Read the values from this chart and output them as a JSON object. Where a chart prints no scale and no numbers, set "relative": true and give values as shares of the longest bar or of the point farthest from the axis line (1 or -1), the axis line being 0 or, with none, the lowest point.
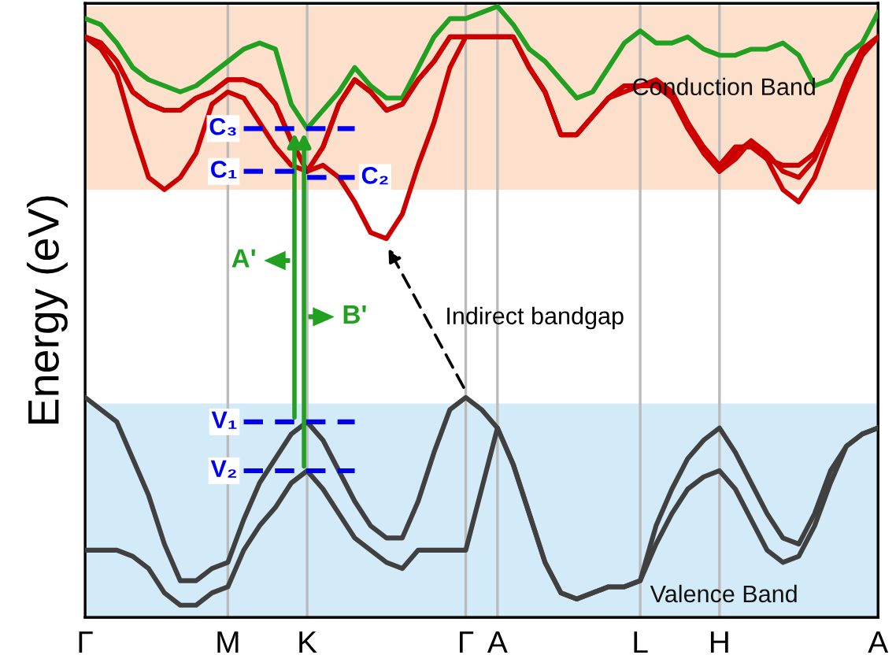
{
  "chart_data": {
    "type": "line",
    "relative": true,
    "ylabel": "Energy (eV)",
    "categories": [
      "Γ",
      null,
      null,
      null,
      null,
      null,
      null,
      null,
      null,
      "M",
      null,
      null,
      null,
      null,
      "K",
      null,
      null,
      null,
      null,
      null,
      null,
      null,
      null,
      null,
      "Γ",
      null,
      "A",
      null,
      null,
      null,
      null,
      null,
      null,
      null,
      null,
      "L",
      null,
      null,
      null,
      null,
      "H",
      null,
      null,
      null,
      null,
      null,
      null,
      null,
      null,
      null,
      "A"
    ],
    "series": [
      {
        "color": "#22a022",
        "values": [
          0.98,
          0.97,
          0.94,
          0.9,
          0.88,
          0.87,
          0.86,
          0.87,
          0.89,
          0.91,
          0.93,
          0.94,
          0.93,
          0.84,
          0.8,
          0.83,
          0.86,
          0.9,
          0.87,
          0.85,
          0.85,
          0.9,
          0.95,
          0.98,
          0.98,
          0.99,
          1.0,
          0.97,
          0.93,
          0.91,
          0.88,
          0.85,
          0.86,
          0.9,
          0.94,
          0.96,
          0.94,
          0.94,
          0.95,
          0.93,
          0.92,
          0.92,
          0.93,
          0.93,
          0.94,
          0.92,
          0.87,
          0.88,
          0.92,
          0.94,
          0.99
        ]
      },
      {
        "color": "#cc0000",
        "values": [
          0.95,
          0.93,
          0.89,
          0.8,
          0.72,
          0.7,
          0.72,
          0.76,
          0.84,
          0.86,
          0.85,
          0.81,
          0.77,
          0.74,
          0.73,
          0.74,
          0.72,
          0.68,
          0.63,
          0.62,
          0.66,
          0.74,
          0.81,
          0.9,
          0.95,
          0.95,
          0.95,
          0.95,
          0.9,
          0.86,
          0.79,
          0.79,
          0.82,
          0.85,
          0.86,
          0.87,
          0.87,
          0.86,
          0.81,
          0.76,
          0.73,
          0.75,
          0.78,
          0.75,
          0.7,
          0.68,
          0.72,
          0.79,
          0.86,
          0.92,
          0.95
        ]
      },
      {
        "color": "#cc0000",
        "values": [
          0.95,
          0.94,
          0.91,
          0.86,
          0.84,
          0.83,
          0.83,
          0.85,
          0.86,
          0.88,
          0.88,
          0.87,
          0.84,
          0.78,
          0.73,
          0.77,
          0.84,
          0.88,
          0.86,
          0.83,
          0.84,
          0.88,
          0.91,
          0.95,
          0.95,
          0.95,
          0.95,
          0.95,
          0.9,
          0.86,
          0.79,
          0.79,
          0.82,
          0.85,
          0.87,
          0.87,
          0.87,
          0.85,
          0.8,
          0.76,
          0.73,
          0.76,
          0.78,
          0.76,
          0.73,
          0.72,
          0.75,
          0.81,
          0.88,
          0.93,
          0.95
        ]
      },
      {
        "color": "#cc0000",
        "values": [
          0.95,
          0.94,
          0.91,
          0.86,
          0.84,
          0.83,
          0.83,
          0.85,
          0.86,
          0.88,
          0.88,
          0.87,
          0.84,
          0.78,
          0.73,
          0.77,
          0.84,
          0.88,
          0.86,
          0.83,
          0.84,
          0.88,
          0.91,
          0.95,
          0.95,
          0.95,
          0.95,
          0.95,
          0.9,
          0.86,
          0.79,
          0.79,
          0.82,
          0.85,
          0.87,
          0.87,
          0.88,
          0.86,
          0.81,
          0.77,
          0.74,
          0.77,
          0.77,
          0.75,
          0.74,
          0.74,
          0.76,
          0.81,
          0.88,
          0.93,
          0.95
        ]
      },
      {
        "color": "#404040",
        "values": [
          0.36,
          0.34,
          0.32,
          0.26,
          0.2,
          0.12,
          0.06,
          0.06,
          0.08,
          0.09,
          0.16,
          0.22,
          0.26,
          0.3,
          0.32,
          0.29,
          0.24,
          0.19,
          0.15,
          0.13,
          0.13,
          0.19,
          0.27,
          0.34,
          0.36,
          0.34,
          0.31,
          0.25,
          0.17,
          0.09,
          0.04,
          0.03,
          0.04,
          0.05,
          0.05,
          0.06,
          0.15,
          0.21,
          0.26,
          0.29,
          0.31,
          0.27,
          0.22,
          0.17,
          0.13,
          0.12,
          0.17,
          0.24,
          0.28,
          0.3,
          0.31
        ]
      },
      {
        "color": "#404040",
        "values": [
          0.11,
          0.11,
          0.11,
          0.1,
          0.08,
          0.04,
          0.02,
          0.02,
          0.04,
          0.05,
          0.11,
          0.15,
          0.18,
          0.22,
          0.24,
          0.21,
          0.17,
          0.13,
          0.11,
          0.09,
          0.08,
          0.11,
          0.11,
          0.11,
          0.11,
          0.21,
          0.31,
          0.25,
          0.17,
          0.09,
          0.04,
          0.03,
          0.04,
          0.05,
          0.05,
          0.06,
          0.12,
          0.17,
          0.21,
          0.23,
          0.24,
          0.21,
          0.16,
          0.11,
          0.09,
          0.1,
          0.15,
          0.22,
          0.28,
          0.3,
          0.31
        ]
      },
      {
        "name": "C₃",
        "color": "#0000ee",
        "line_style": "dashed",
        "values": [
          null,
          null,
          null,
          null,
          null,
          null,
          null,
          null,
          null,
          null,
          0.8,
          0.8,
          0.8,
          0.8,
          0.8,
          0.8,
          0.8,
          0.8,
          null,
          null,
          null,
          null,
          null,
          null,
          null,
          null,
          null,
          null,
          null,
          null,
          null,
          null,
          null,
          null,
          null,
          null,
          null,
          null,
          null,
          null,
          null,
          null,
          null,
          null,
          null,
          null,
          null,
          null,
          null,
          null,
          null
        ]
      },
      {
        "name": "C₁",
        "color": "#0000ee",
        "line_style": "dashed",
        "values": [
          null,
          null,
          null,
          null,
          null,
          null,
          null,
          null,
          null,
          null,
          0.73,
          0.73,
          0.73,
          0.73,
          0.73,
          null,
          null,
          null,
          null,
          null,
          null,
          null,
          null,
          null,
          null,
          null,
          null,
          null,
          null,
          null,
          null,
          null,
          null,
          null,
          null,
          null,
          null,
          null,
          null,
          null,
          null,
          null,
          null,
          null,
          null,
          null,
          null,
          null,
          null,
          null,
          null
        ]
      },
      {
        "name": "C₂",
        "color": "#0000ee",
        "line_style": "dashed",
        "values": [
          null,
          null,
          null,
          null,
          null,
          null,
          null,
          null,
          null,
          null,
          null,
          null,
          null,
          null,
          0.72,
          0.72,
          0.72,
          0.72,
          null,
          null,
          null,
          null,
          null,
          null,
          null,
          null,
          null,
          null,
          null,
          null,
          null,
          null,
          null,
          null,
          null,
          null,
          null,
          null,
          null,
          null,
          null,
          null,
          null,
          null,
          null,
          null,
          null,
          null,
          null,
          null,
          null
        ]
      },
      {
        "name": "V₁",
        "color": "#0000ee",
        "line_style": "dashed",
        "values": [
          null,
          null,
          null,
          null,
          null,
          null,
          null,
          null,
          null,
          null,
          0.32,
          0.32,
          0.32,
          0.32,
          0.32,
          0.32,
          0.32,
          0.32,
          null,
          null,
          null,
          null,
          null,
          null,
          null,
          null,
          null,
          null,
          null,
          null,
          null,
          null,
          null,
          null,
          null,
          null,
          null,
          null,
          null,
          null,
          null,
          null,
          null,
          null,
          null,
          null,
          null,
          null,
          null,
          null,
          null
        ]
      },
      {
        "name": "V₂",
        "color": "#0000ee",
        "line_style": "dashed",
        "values": [
          null,
          null,
          null,
          null,
          null,
          null,
          null,
          null,
          null,
          null,
          0.24,
          0.24,
          0.24,
          0.24,
          0.24,
          0.24,
          0.24,
          0.24,
          null,
          null,
          null,
          null,
          null,
          null,
          null,
          null,
          null,
          null,
          null,
          null,
          null,
          null,
          null,
          null,
          null,
          null,
          null,
          null,
          null,
          null,
          null,
          null,
          null,
          null,
          null,
          null,
          null,
          null,
          null,
          null,
          null
        ]
      }
    ],
    "annotations": [
      "A'",
      "B'",
      "Indirect bandgap"
    ],
    "bands": [
      {
        "axis": "y",
        "from": 0.7,
        "to": 1.0,
        "label": "Conduction Band",
        "color": "#fde0cc"
      },
      {
        "axis": "y",
        "from": 0.0,
        "to": 0.35,
        "label": "Valence Band",
        "color": "#d3eaf8"
      }
    ],
    "grid": "x",
    "line_style": "solid"
  }
}
